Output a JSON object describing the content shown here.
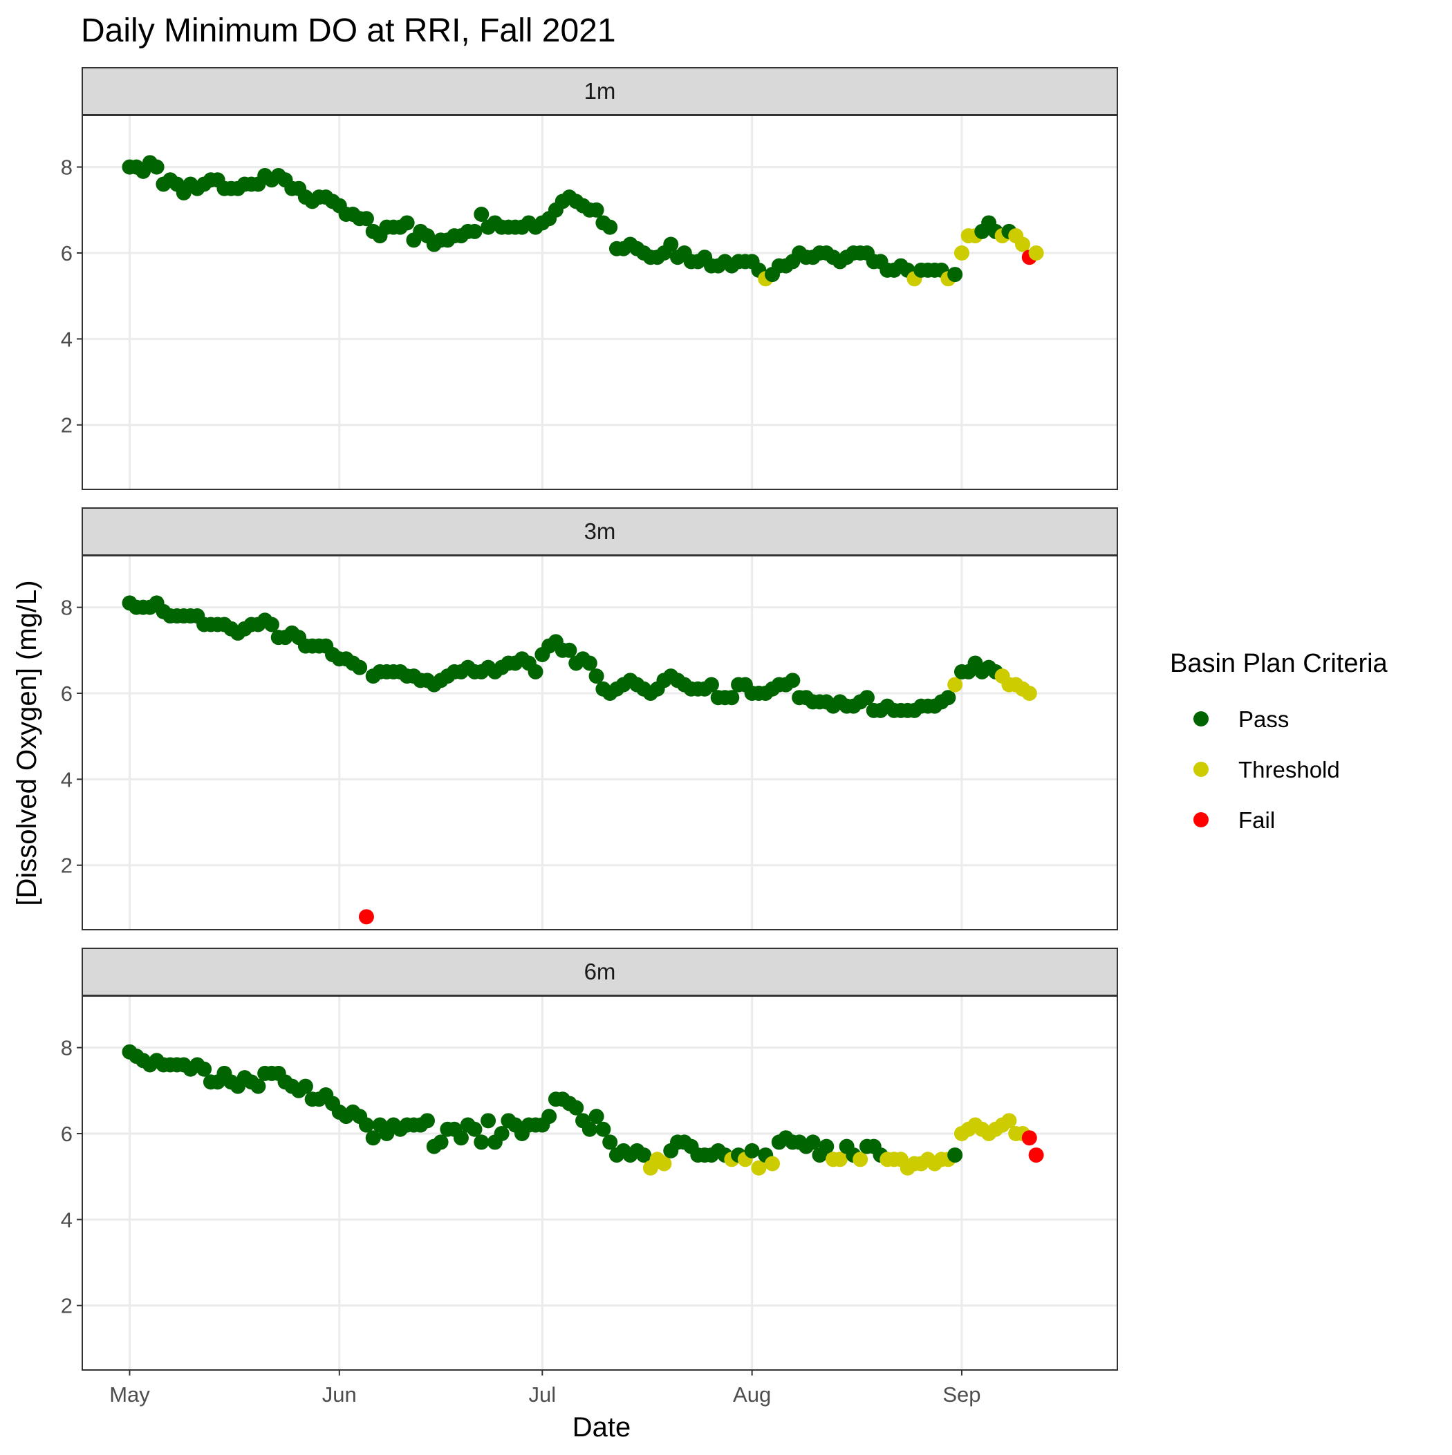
{
  "chart_data": {
    "type": "scatter",
    "title": "Daily Minimum DO at RRI, Fall 2021",
    "xlabel": "Date",
    "ylabel": "[Dissolved Oxygen] (mg/L)",
    "x_ticks": [
      {
        "label": "May",
        "date": "2021-05-01"
      },
      {
        "label": "Jun",
        "date": "2021-06-01"
      },
      {
        "label": "Jul",
        "date": "2021-07-01"
      },
      {
        "label": "Aug",
        "date": "2021-08-01"
      },
      {
        "label": "Sep",
        "date": "2021-09-01"
      }
    ],
    "xlim": [
      "2021-04-24",
      "2021-09-24"
    ],
    "y_ticks": [
      2,
      4,
      6,
      8
    ],
    "ylim": [
      0.5,
      9.2
    ],
    "grid": true,
    "legend": {
      "title": "Basin Plan Criteria",
      "position": "right",
      "entries": [
        {
          "label": "Pass",
          "color": "#006400"
        },
        {
          "label": "Threshold",
          "color": "#cccc00"
        },
        {
          "label": "Fail",
          "color": "#ff0000"
        }
      ]
    },
    "panels": [
      {
        "label": "1m",
        "start_date": "2021-05-01",
        "values": [
          8.0,
          8.0,
          7.9,
          8.1,
          8.0,
          7.6,
          7.7,
          7.6,
          7.4,
          7.6,
          7.5,
          7.6,
          7.7,
          7.7,
          7.5,
          7.5,
          7.5,
          7.6,
          7.6,
          7.6,
          7.8,
          7.7,
          7.8,
          7.7,
          7.5,
          7.5,
          7.3,
          7.2,
          7.3,
          7.3,
          7.2,
          7.1,
          6.9,
          6.9,
          6.8,
          6.8,
          6.5,
          6.4,
          6.6,
          6.6,
          6.6,
          6.7,
          6.3,
          6.5,
          6.4,
          6.2,
          6.3,
          6.3,
          6.4,
          6.4,
          6.5,
          6.5,
          6.9,
          6.6,
          6.7,
          6.6,
          6.6,
          6.6,
          6.6,
          6.7,
          6.6,
          6.7,
          6.8,
          7.0,
          7.2,
          7.3,
          7.2,
          7.1,
          7.0,
          7.0,
          6.7,
          6.6,
          6.1,
          6.1,
          6.2,
          6.1,
          6.0,
          5.9,
          5.9,
          6.0,
          6.2,
          5.9,
          6.0,
          5.8,
          5.8,
          5.9,
          5.7,
          5.7,
          5.8,
          5.7,
          5.8,
          5.8,
          5.8,
          5.6,
          5.4,
          5.5,
          5.7,
          5.7,
          5.8,
          6.0,
          5.9,
          5.9,
          6.0,
          6.0,
          5.9,
          5.8,
          5.9,
          6.0,
          6.0,
          6.0,
          5.8,
          5.8,
          5.6,
          5.6,
          5.7,
          5.6,
          5.4,
          5.6,
          5.6,
          5.6,
          5.6,
          5.4,
          5.5,
          6.0,
          6.4,
          6.4,
          6.5,
          6.7,
          6.5,
          6.4,
          6.5,
          6.4,
          6.2,
          5.9,
          6.0
        ],
        "categories": [
          "P",
          "P",
          "P",
          "P",
          "P",
          "P",
          "P",
          "P",
          "P",
          "P",
          "P",
          "P",
          "P",
          "P",
          "P",
          "P",
          "P",
          "P",
          "P",
          "P",
          "P",
          "P",
          "P",
          "P",
          "P",
          "P",
          "P",
          "P",
          "P",
          "P",
          "P",
          "P",
          "P",
          "P",
          "P",
          "P",
          "P",
          "P",
          "P",
          "P",
          "P",
          "P",
          "P",
          "P",
          "P",
          "P",
          "P",
          "P",
          "P",
          "P",
          "P",
          "P",
          "P",
          "P",
          "P",
          "P",
          "P",
          "P",
          "P",
          "P",
          "P",
          "P",
          "P",
          "P",
          "P",
          "P",
          "P",
          "P",
          "P",
          "P",
          "P",
          "P",
          "P",
          "P",
          "P",
          "P",
          "P",
          "P",
          "P",
          "P",
          "P",
          "P",
          "P",
          "P",
          "P",
          "P",
          "P",
          "P",
          "P",
          "P",
          "P",
          "P",
          "P",
          "P",
          "T",
          "P",
          "P",
          "P",
          "P",
          "P",
          "P",
          "P",
          "P",
          "P",
          "P",
          "P",
          "P",
          "P",
          "P",
          "P",
          "P",
          "P",
          "P",
          "P",
          "P",
          "P",
          "T",
          "P",
          "P",
          "P",
          "P",
          "T",
          "P",
          "T",
          "T",
          "T",
          "P",
          "P",
          "P",
          "T",
          "P",
          "T",
          "T",
          "F",
          "T"
        ]
      },
      {
        "label": "3m",
        "start_date": "2021-05-01",
        "values": [
          8.1,
          8.0,
          8.0,
          8.0,
          8.1,
          7.9,
          7.8,
          7.8,
          7.8,
          7.8,
          7.8,
          7.6,
          7.6,
          7.6,
          7.6,
          7.5,
          7.4,
          7.5,
          7.6,
          7.6,
          7.7,
          7.6,
          7.3,
          7.3,
          7.4,
          7.3,
          7.1,
          7.1,
          7.1,
          7.1,
          6.9,
          6.8,
          6.8,
          6.7,
          6.6,
          0.8,
          6.4,
          6.5,
          6.5,
          6.5,
          6.5,
          6.4,
          6.4,
          6.3,
          6.3,
          6.2,
          6.3,
          6.4,
          6.5,
          6.5,
          6.6,
          6.5,
          6.5,
          6.6,
          6.5,
          6.6,
          6.7,
          6.7,
          6.8,
          6.7,
          6.5,
          6.9,
          7.1,
          7.2,
          7.0,
          7.0,
          6.7,
          6.8,
          6.7,
          6.4,
          6.1,
          6.0,
          6.1,
          6.2,
          6.3,
          6.2,
          6.1,
          6.0,
          6.1,
          6.3,
          6.4,
          6.3,
          6.2,
          6.1,
          6.1,
          6.1,
          6.2,
          5.9,
          5.9,
          5.9,
          6.2,
          6.2,
          6.0,
          6.0,
          6.0,
          6.1,
          6.2,
          6.2,
          6.3,
          5.9,
          5.9,
          5.8,
          5.8,
          5.8,
          5.7,
          5.8,
          5.7,
          5.7,
          5.8,
          5.9,
          5.6,
          5.6,
          5.7,
          5.6,
          5.6,
          5.6,
          5.6,
          5.7,
          5.7,
          5.7,
          5.8,
          5.9,
          6.2,
          6.5,
          6.5,
          6.7,
          6.5,
          6.6,
          6.5,
          6.4,
          6.2,
          6.2,
          6.1,
          6.0
        ],
        "categories": [
          "P",
          "P",
          "P",
          "P",
          "P",
          "P",
          "P",
          "P",
          "P",
          "P",
          "P",
          "P",
          "P",
          "P",
          "P",
          "P",
          "P",
          "P",
          "P",
          "P",
          "P",
          "P",
          "P",
          "P",
          "P",
          "P",
          "P",
          "P",
          "P",
          "P",
          "P",
          "P",
          "P",
          "P",
          "P",
          "F",
          "P",
          "P",
          "P",
          "P",
          "P",
          "P",
          "P",
          "P",
          "P",
          "P",
          "P",
          "P",
          "P",
          "P",
          "P",
          "P",
          "P",
          "P",
          "P",
          "P",
          "P",
          "P",
          "P",
          "P",
          "P",
          "P",
          "P",
          "P",
          "P",
          "P",
          "P",
          "P",
          "P",
          "P",
          "P",
          "P",
          "P",
          "P",
          "P",
          "P",
          "P",
          "P",
          "P",
          "P",
          "P",
          "P",
          "P",
          "P",
          "P",
          "P",
          "P",
          "P",
          "P",
          "P",
          "P",
          "P",
          "P",
          "P",
          "P",
          "P",
          "P",
          "P",
          "P",
          "P",
          "P",
          "P",
          "P",
          "P",
          "P",
          "P",
          "P",
          "P",
          "P",
          "P",
          "P",
          "P",
          "P",
          "P",
          "P",
          "P",
          "P",
          "P",
          "P",
          "P",
          "P",
          "P",
          "T",
          "P",
          "P",
          "P",
          "P",
          "P",
          "P",
          "T",
          "T",
          "T",
          "T",
          "T"
        ]
      },
      {
        "label": "6m",
        "start_date": "2021-05-01",
        "values": [
          7.9,
          7.8,
          7.7,
          7.6,
          7.7,
          7.6,
          7.6,
          7.6,
          7.6,
          7.5,
          7.6,
          7.5,
          7.2,
          7.2,
          7.4,
          7.2,
          7.1,
          7.3,
          7.2,
          7.1,
          7.4,
          7.4,
          7.4,
          7.2,
          7.1,
          7.0,
          7.1,
          6.8,
          6.8,
          6.9,
          6.7,
          6.5,
          6.4,
          6.5,
          6.4,
          6.2,
          5.9,
          6.2,
          6.0,
          6.2,
          6.1,
          6.2,
          6.2,
          6.2,
          6.3,
          5.7,
          5.8,
          6.1,
          6.1,
          5.9,
          6.2,
          6.1,
          5.8,
          6.3,
          5.8,
          6.0,
          6.3,
          6.2,
          6.0,
          6.2,
          6.2,
          6.2,
          6.4,
          6.8,
          6.8,
          6.7,
          6.6,
          6.3,
          6.1,
          6.4,
          6.1,
          5.8,
          5.5,
          5.6,
          5.5,
          5.6,
          5.5,
          5.2,
          5.4,
          5.3,
          5.6,
          5.8,
          5.8,
          5.7,
          5.5,
          5.5,
          5.5,
          5.6,
          5.5,
          5.4,
          5.5,
          5.4,
          5.6,
          5.2,
          5.5,
          5.3,
          5.8,
          5.9,
          5.8,
          5.8,
          5.7,
          5.8,
          5.5,
          5.7,
          5.4,
          5.4,
          5.7,
          5.5,
          5.4,
          5.7,
          5.7,
          5.5,
          5.4,
          5.4,
          5.4,
          5.2,
          5.3,
          5.3,
          5.4,
          5.3,
          5.4,
          5.4,
          5.5,
          6.0,
          6.1,
          6.2,
          6.1,
          6.0,
          6.1,
          6.2,
          6.3,
          6.0,
          6.0,
          5.9,
          5.5
        ],
        "categories": [
          "P",
          "P",
          "P",
          "P",
          "P",
          "P",
          "P",
          "P",
          "P",
          "P",
          "P",
          "P",
          "P",
          "P",
          "P",
          "P",
          "P",
          "P",
          "P",
          "P",
          "P",
          "P",
          "P",
          "P",
          "P",
          "P",
          "P",
          "P",
          "P",
          "P",
          "P",
          "P",
          "P",
          "P",
          "P",
          "P",
          "P",
          "P",
          "P",
          "P",
          "P",
          "P",
          "P",
          "P",
          "P",
          "P",
          "P",
          "P",
          "P",
          "P",
          "P",
          "P",
          "P",
          "P",
          "P",
          "P",
          "P",
          "P",
          "P",
          "P",
          "P",
          "P",
          "P",
          "P",
          "P",
          "P",
          "P",
          "P",
          "P",
          "P",
          "P",
          "P",
          "P",
          "P",
          "P",
          "P",
          "P",
          "T",
          "T",
          "T",
          "P",
          "P",
          "P",
          "P",
          "P",
          "P",
          "P",
          "P",
          "P",
          "T",
          "P",
          "T",
          "P",
          "T",
          "P",
          "T",
          "P",
          "P",
          "P",
          "P",
          "P",
          "P",
          "P",
          "P",
          "T",
          "T",
          "P",
          "P",
          "T",
          "P",
          "P",
          "P",
          "T",
          "T",
          "T",
          "T",
          "T",
          "T",
          "T",
          "T",
          "T",
          "T",
          "P",
          "T",
          "T",
          "T",
          "T",
          "T",
          "T",
          "T",
          "T",
          "T",
          "T",
          "F",
          "F"
        ]
      }
    ]
  }
}
